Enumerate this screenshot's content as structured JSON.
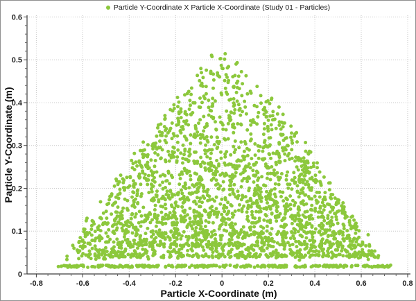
{
  "window": {
    "background": "#ffffff",
    "border_color": "#8f8f8f"
  },
  "chart_data": {
    "type": "scatter",
    "title": "",
    "legend_position": "top-center",
    "series": [
      {
        "name": "Particle Y-Coordinate X Particle X-Coordinate (Study 01 - Particles)",
        "marker_color": "#8CC83C",
        "marker_radius_px": 2.5
      }
    ],
    "xlabel": "Particle X-Coordinate (m)",
    "ylabel": "Particle Y-Coordinate (m)",
    "xlim": [
      -0.84,
      0.812
    ],
    "ylim": [
      0,
      0.604
    ],
    "x_ticks": [
      -0.8,
      -0.6,
      -0.4,
      -0.2,
      0,
      0.2,
      0.4,
      0.6,
      0.8
    ],
    "x_tick_labels": [
      "-0.8",
      "-0.6",
      "-0.4",
      "-0.2",
      "0",
      "0.2",
      "0.4",
      "0.6",
      "0.8"
    ],
    "y_ticks": [
      0,
      0.1,
      0.2,
      0.3,
      0.4,
      0.5,
      0.6
    ],
    "y_tick_labels": [
      "0",
      "0.1",
      "0.2",
      "0.3",
      "0.4",
      "0.5",
      "0.6"
    ],
    "x_minor_step": 0.05,
    "y_minor_step": 0.02,
    "grid": {
      "show_major": true,
      "style": "dotted",
      "color": "#c8c8c8"
    },
    "axis_color": "#3c3c3c",
    "point_cloud": {
      "description": "Triangular pile of ~2700 particles; dense settled row along the floor at y=0.018 m spanning x=-0.70..0.74 m, pile apex near (0.00, 0.53) m, base corners near (-0.67, 0.04) and (0.67, 0.04) m, density increasing toward the base.",
      "seed": 20240117,
      "apex": [
        0.005,
        0.527
      ],
      "base_y": 0.038,
      "base_left_x": -0.665,
      "base_right_x": 0.675,
      "edge_exponent": 0.85,
      "edge_jitter": 0.03,
      "y_jitter": 0.012,
      "n_fill": 2200,
      "bottom_bias": 0.55,
      "y_max": 0.545,
      "rows": [
        {
          "y": 0.018,
          "y_jitter": 0.0025,
          "x_range": [
            -0.705,
            0.735
          ],
          "n": 280
        },
        {
          "y": 0.042,
          "y_jitter": 0.004,
          "x_range": [
            -0.55,
            0.675
          ],
          "n": 110
        },
        {
          "y": 0.068,
          "y_jitter": 0.005,
          "x_range": [
            -0.4,
            0.6
          ],
          "n": 70
        },
        {
          "y": 0.094,
          "y_jitter": 0.005,
          "x_range": [
            -0.3,
            0.58
          ],
          "n": 55
        }
      ]
    }
  }
}
